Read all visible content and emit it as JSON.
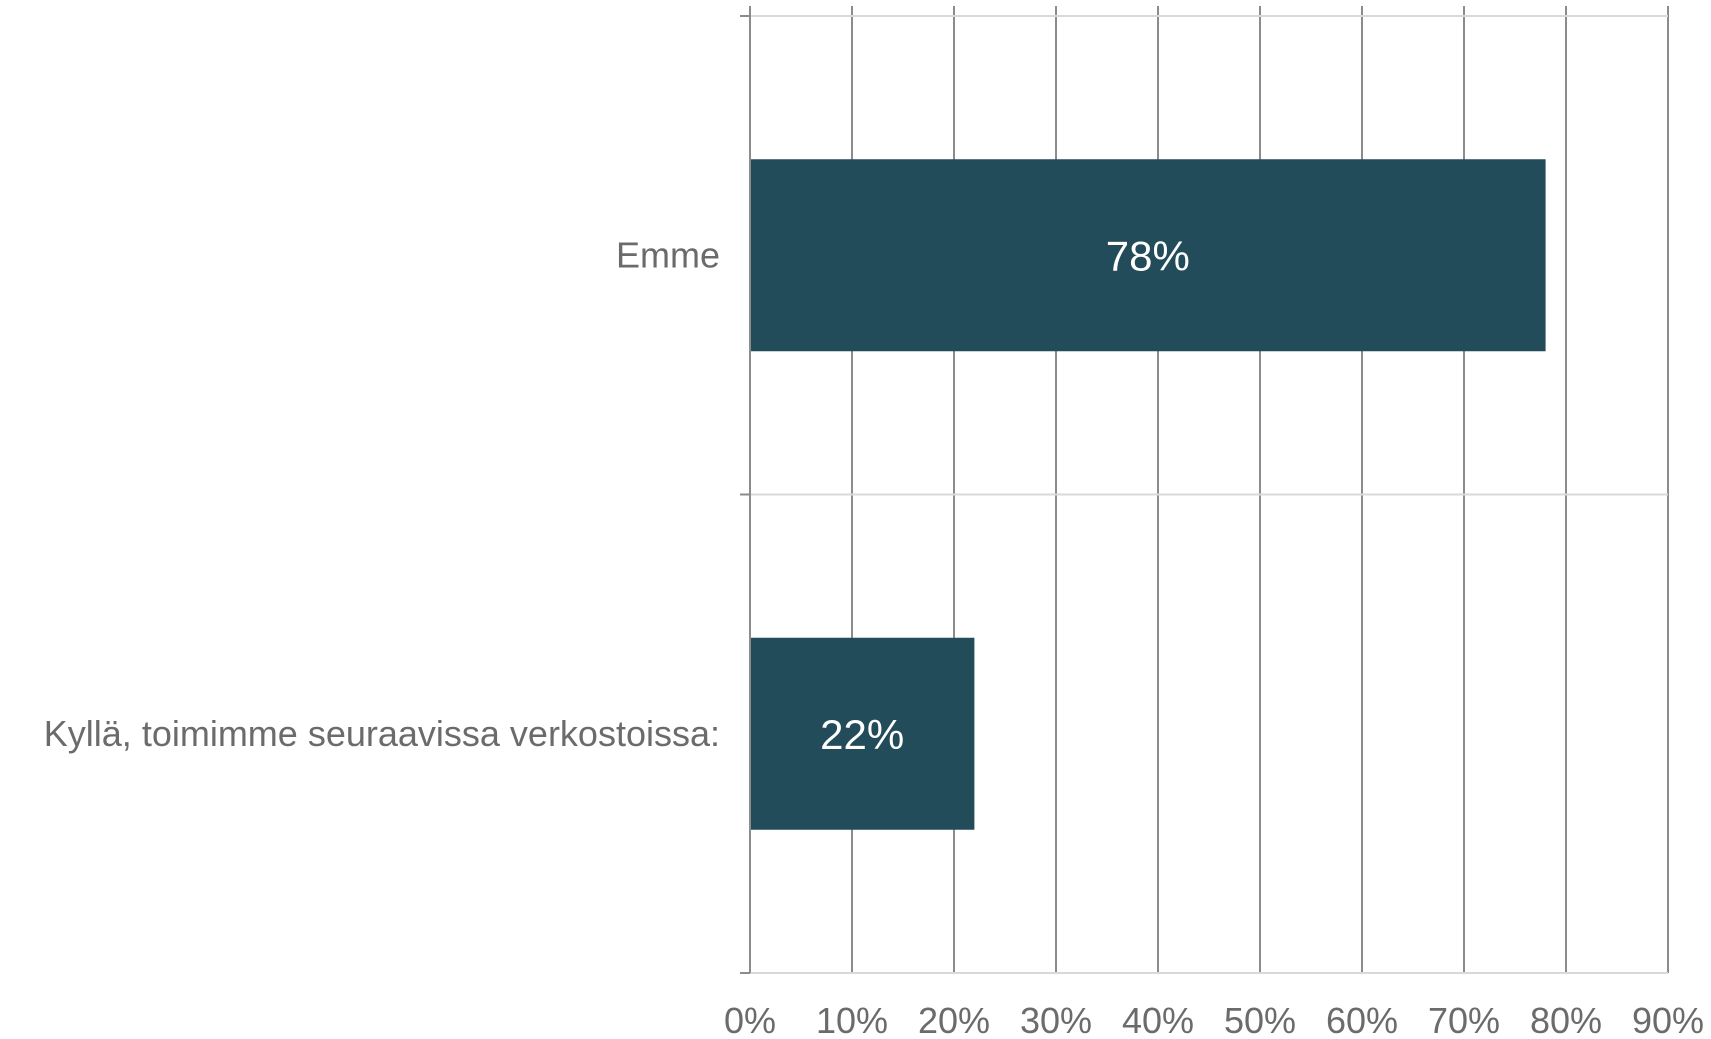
{
  "chart_data": {
    "type": "bar",
    "orientation": "horizontal",
    "categories": [
      "Emme",
      "Kyllä, toimimme seuraavissa verkostoissa:"
    ],
    "values": [
      78,
      22
    ],
    "data_labels": [
      "78%",
      "22%"
    ],
    "xlim": [
      0,
      90
    ],
    "x_ticks": [
      0,
      10,
      20,
      30,
      40,
      50,
      60,
      70,
      80,
      90
    ],
    "x_tick_labels": [
      "0%",
      "10%",
      "20%",
      "30%",
      "40%",
      "50%",
      "60%",
      "70%",
      "80%",
      "90%"
    ],
    "grid": true,
    "legend": "none",
    "colors": {
      "bar": "#234c5b",
      "grid": "#8c8c8c",
      "axis": "#d9d9d9",
      "text": "#6b6b6b",
      "bar_label": "#ffffff"
    }
  }
}
